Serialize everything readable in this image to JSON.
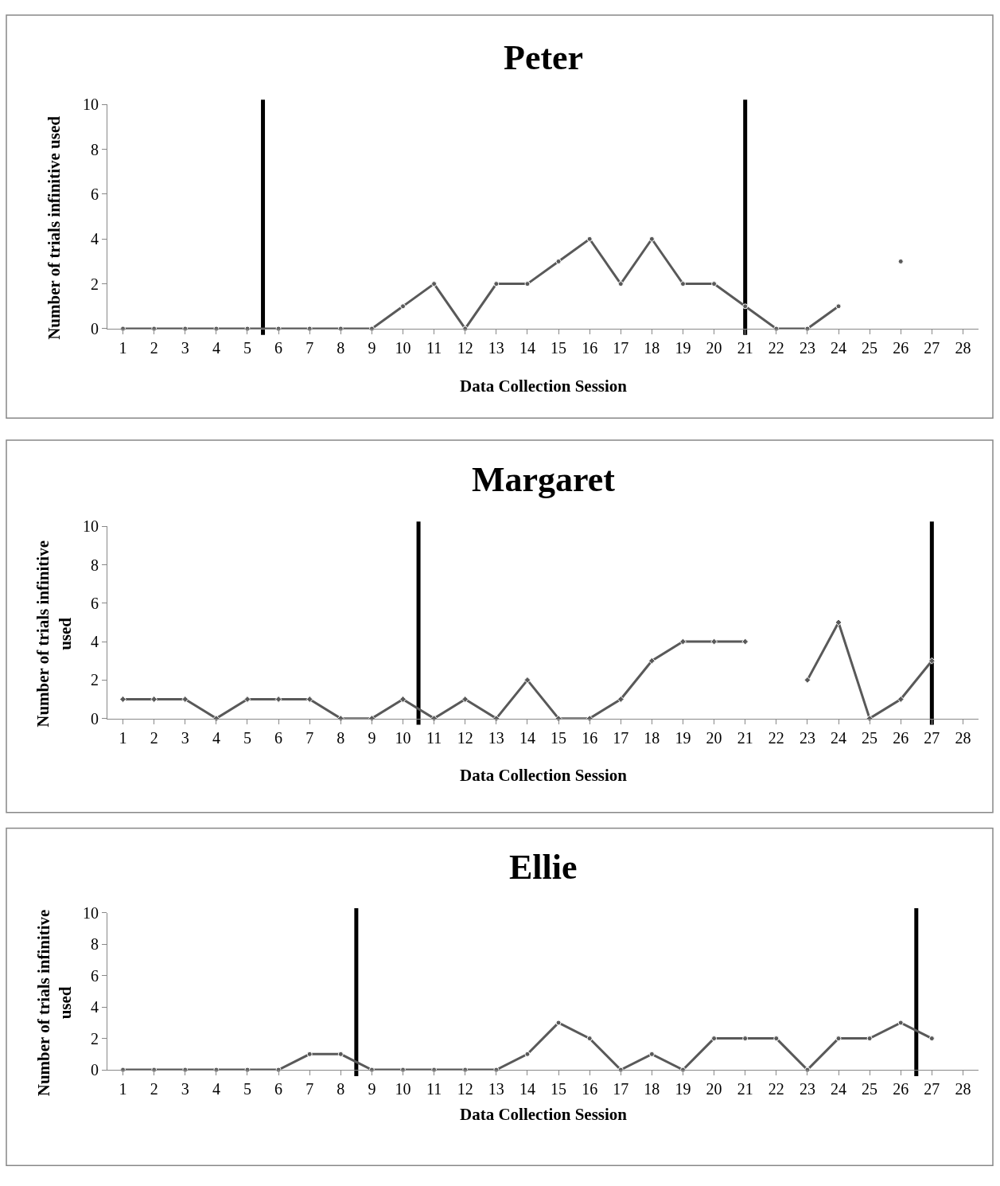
{
  "chart_data": [
    {
      "type": "line",
      "title": "Peter",
      "xlabel": "Data Collection Session",
      "ylabel": "Number of trials infinitive used",
      "x": [
        1,
        2,
        3,
        4,
        5,
        6,
        7,
        8,
        9,
        10,
        11,
        12,
        13,
        14,
        15,
        16,
        17,
        18,
        19,
        20,
        21,
        22,
        23,
        24,
        25,
        26
      ],
      "xlim": [
        0.5,
        28.5
      ],
      "xticks": [
        1,
        2,
        3,
        4,
        5,
        6,
        7,
        8,
        9,
        10,
        11,
        12,
        13,
        14,
        15,
        16,
        17,
        18,
        19,
        20,
        21,
        22,
        23,
        24,
        25,
        26,
        27,
        28
      ],
      "ylim": [
        0,
        10
      ],
      "yticks": [
        0,
        2,
        4,
        6,
        8,
        10
      ],
      "marker": "circle",
      "line_style": "solid",
      "series": [
        {
          "color": "#595959",
          "values": [
            0,
            0,
            0,
            0,
            0,
            0,
            0,
            0,
            0,
            1,
            2,
            0,
            2,
            2,
            3,
            4,
            2,
            4,
            2,
            2,
            1,
            0,
            0,
            1,
            null,
            3
          ]
        }
      ],
      "ref_lines": [
        {
          "axis": "x",
          "value": 5.5,
          "color": "#000000"
        },
        {
          "axis": "x",
          "value": 21,
          "color": "#000000"
        }
      ]
    },
    {
      "type": "line",
      "title": "Margaret",
      "xlabel": "Data Collection Session",
      "ylabel": "Number of trials infinitive used",
      "x": [
        1,
        2,
        3,
        4,
        5,
        6,
        7,
        8,
        9,
        10,
        11,
        12,
        13,
        14,
        15,
        16,
        17,
        18,
        19,
        20,
        21,
        22,
        23,
        24,
        25,
        26,
        27
      ],
      "xlim": [
        0.5,
        28.5
      ],
      "xticks": [
        1,
        2,
        3,
        4,
        5,
        6,
        7,
        8,
        9,
        10,
        11,
        12,
        13,
        14,
        15,
        16,
        17,
        18,
        19,
        20,
        21,
        22,
        23,
        24,
        25,
        26,
        27,
        28
      ],
      "ylim": [
        0,
        10
      ],
      "yticks": [
        0,
        2,
        4,
        6,
        8,
        10
      ],
      "marker": "diamond",
      "line_style": "solid",
      "series": [
        {
          "color": "#595959",
          "values": [
            1,
            1,
            1,
            0,
            1,
            1,
            1,
            0,
            0,
            1,
            0,
            1,
            0,
            2,
            0,
            0,
            1,
            3,
            4,
            4,
            4,
            null,
            2,
            5,
            0,
            1,
            3
          ]
        }
      ],
      "ref_lines": [
        {
          "axis": "x",
          "value": 10.5,
          "color": "#000000"
        },
        {
          "axis": "x",
          "value": 27,
          "color": "#000000"
        }
      ]
    },
    {
      "type": "line",
      "title": "Ellie",
      "xlabel": "Data Collection Session",
      "ylabel": "Number of trials infinitive used",
      "x": [
        1,
        2,
        3,
        4,
        5,
        6,
        7,
        8,
        9,
        10,
        11,
        12,
        13,
        14,
        15,
        16,
        17,
        18,
        19,
        20,
        21,
        22,
        23,
        24,
        25,
        26,
        27
      ],
      "xlim": [
        0.5,
        28.5
      ],
      "xticks": [
        1,
        2,
        3,
        4,
        5,
        6,
        7,
        8,
        9,
        10,
        11,
        12,
        13,
        14,
        15,
        16,
        17,
        18,
        19,
        20,
        21,
        22,
        23,
        24,
        25,
        26,
        27,
        28
      ],
      "ylim": [
        0,
        10
      ],
      "yticks": [
        0,
        2,
        4,
        6,
        8,
        10
      ],
      "marker": "circle",
      "line_style": "solid",
      "series": [
        {
          "color": "#595959",
          "values": [
            0,
            0,
            0,
            0,
            0,
            0,
            1,
            1,
            0,
            0,
            0,
            0,
            0,
            1,
            3,
            2,
            0,
            1,
            0,
            2,
            2,
            2,
            0,
            2,
            2,
            3,
            2
          ]
        }
      ],
      "ref_lines": [
        {
          "axis": "x",
          "value": 8.5,
          "color": "#000000"
        },
        {
          "axis": "x",
          "value": 26.5,
          "color": "#000000"
        }
      ]
    }
  ]
}
